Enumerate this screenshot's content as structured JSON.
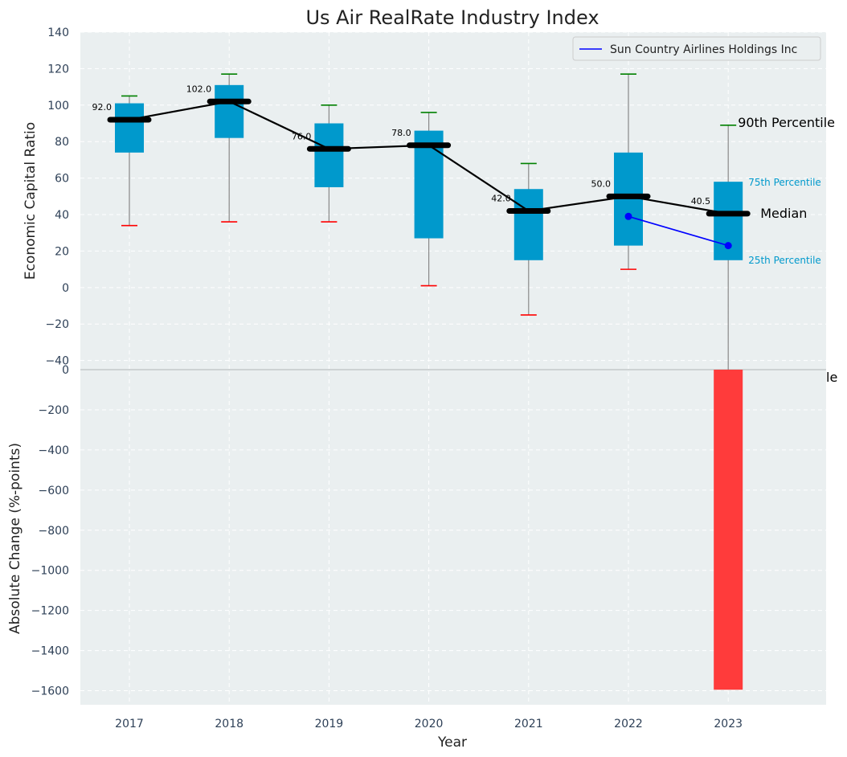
{
  "chart_data": {
    "type": "box",
    "title": "Us Air RealRate Industry Index",
    "xlabel": "Year",
    "categories": [
      "2017",
      "2018",
      "2019",
      "2020",
      "2021",
      "2022",
      "2023"
    ],
    "top_panel": {
      "ylabel": "Economic Capital Ratio",
      "ylim": [
        -45,
        140
      ],
      "yticks": [
        -40,
        -20,
        0,
        20,
        40,
        60,
        80,
        100,
        120,
        140
      ],
      "ytick_labels": [
        "−40",
        "−20",
        "0",
        "20",
        "40",
        "60",
        "80",
        "100",
        "120",
        "140"
      ],
      "boxes": [
        {
          "year": "2017",
          "p10": 34,
          "p25": 74,
          "median": 92,
          "p75": 101,
          "p90": 105,
          "median_label": "92.0"
        },
        {
          "year": "2018",
          "p10": 36,
          "p25": 82,
          "median": 102,
          "p75": 111,
          "p90": 117,
          "median_label": "102.0"
        },
        {
          "year": "2019",
          "p10": 36,
          "p25": 55,
          "median": 76,
          "p75": 90,
          "p90": 100,
          "median_label": "76.0"
        },
        {
          "year": "2020",
          "p10": 1,
          "p25": 27,
          "median": 78,
          "p75": 86,
          "p90": 96,
          "median_label": "78.0"
        },
        {
          "year": "2021",
          "p10": -15,
          "p25": 15,
          "median": 42,
          "p75": 54,
          "p90": 68,
          "median_label": "42.0"
        },
        {
          "year": "2022",
          "p10": 10,
          "p25": 23,
          "median": 50,
          "p75": 74,
          "p90": 117,
          "median_label": "50.0"
        },
        {
          "year": "2023",
          "p10": -48,
          "p25": 15,
          "median": 40.5,
          "p75": 58,
          "p90": 89,
          "median_label": "40.5"
        }
      ],
      "series": [
        {
          "name": "Sun Country Airlines Holdings Inc",
          "color": "#0000ff",
          "x": [
            "2022",
            "2023"
          ],
          "values": [
            39,
            23
          ]
        }
      ],
      "legend": "top-right",
      "annotations": {
        "p90": "90th Percentile",
        "p75": "75th Percentile",
        "median": "Median",
        "p25": "25th Percentile",
        "clipped": "le"
      }
    },
    "bottom_panel": {
      "type": "bar",
      "ylabel": "Absolute Change (%-points)",
      "ylim": [
        -1670,
        0
      ],
      "yticks": [
        0,
        -200,
        -400,
        -600,
        -800,
        -1000,
        -1200,
        -1400,
        -1600
      ],
      "ytick_labels": [
        "0",
        "−200",
        "−400",
        "−600",
        "−800",
        "−1000",
        "−1200",
        "−1400",
        "−1600"
      ],
      "bars": [
        {
          "year": "2023",
          "value": -1595,
          "color": "#ff3b3b"
        }
      ]
    },
    "colors": {
      "box": "#0099cc",
      "median": "#000000",
      "upper_cap": "#008000",
      "lower_cap": "#ff0000",
      "whisker": "#888888",
      "panel_bg": "#eaeff0",
      "grid": "#ffffff",
      "tick_text": "#2e4057"
    },
    "grid": true
  }
}
